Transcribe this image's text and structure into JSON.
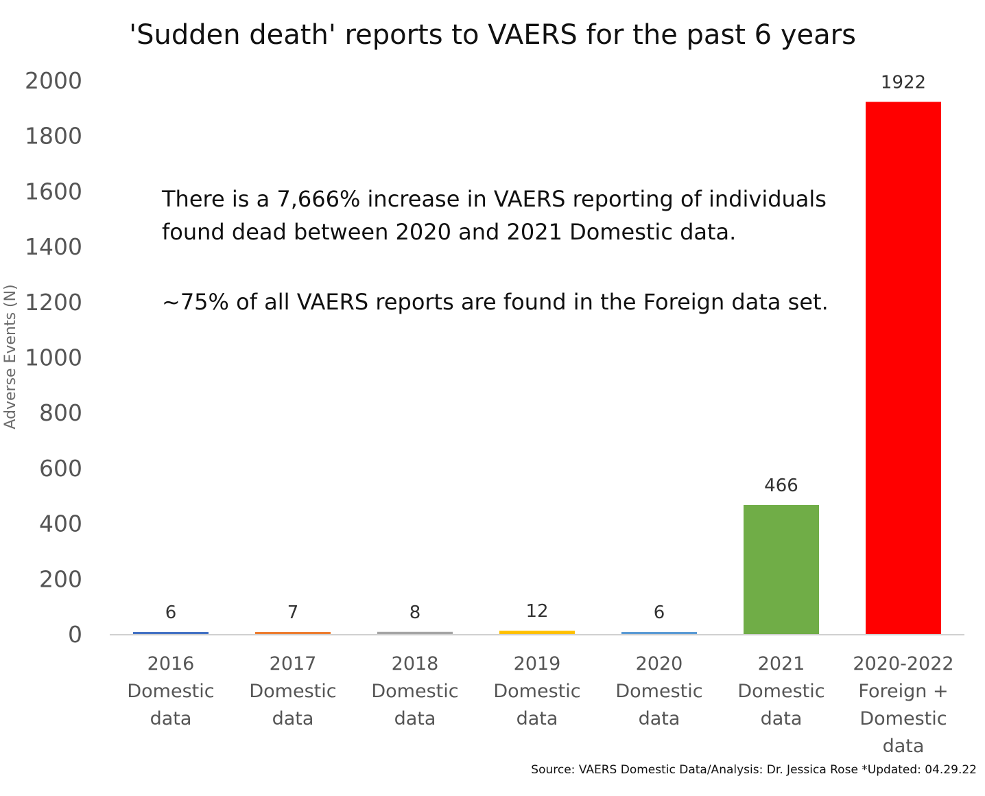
{
  "chart_data": {
    "type": "bar",
    "title": "'Sudden death' reports to VAERS for the past 6 years",
    "ylabel": "Adverse Events (N)",
    "xlabel": "",
    "ylim": [
      0,
      2000
    ],
    "yticks": [
      0,
      200,
      400,
      600,
      800,
      1000,
      1200,
      1400,
      1600,
      1800,
      2000
    ],
    "grid": false,
    "legend": "none",
    "categories": [
      [
        "2016",
        "Domestic",
        "data"
      ],
      [
        "2017",
        "Domestic",
        "data"
      ],
      [
        "2018",
        "Domestic",
        "data"
      ],
      [
        "2019",
        "Domestic",
        "data"
      ],
      [
        "2020",
        "Domestic",
        "data"
      ],
      [
        "2021",
        "Domestic",
        "data"
      ],
      [
        "2020-2022",
        "Foreign +",
        "Domestic",
        "data"
      ]
    ],
    "values": [
      6,
      7,
      8,
      12,
      6,
      466,
      1922
    ],
    "data_labels": [
      "6",
      "7",
      "8",
      "12",
      "6",
      "466",
      "1922"
    ],
    "colors": [
      "#4472C4",
      "#ED7D31",
      "#A5A5A5",
      "#FFC000",
      "#5B9BD5",
      "#70AD47",
      "#FF0000"
    ],
    "annotations": [
      "There is a 7,666% increase in VAERS reporting of individuals found dead between 2020 and 2021 Domestic data.",
      "~75% of all VAERS reports are found in the Foreign data set."
    ],
    "source": "Source: VAERS Domestic Data/Analysis: Dr. Jessica Rose *Updated: 04.29.22"
  }
}
